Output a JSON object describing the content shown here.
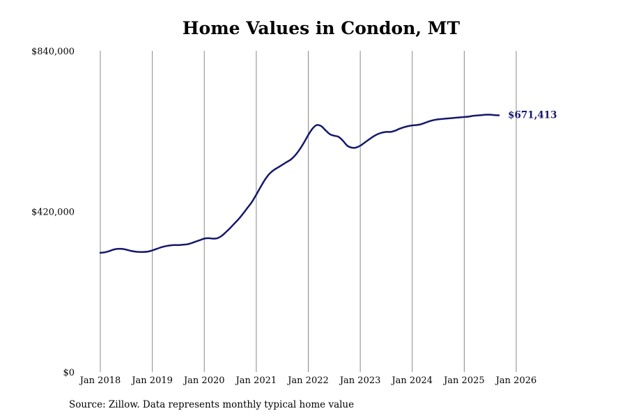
{
  "chart_data": {
    "type": "line",
    "title": "Home Values in Condon, MT",
    "source_note": "Source: Zillow. Data represents monthly typical home value",
    "xlabel": "",
    "ylabel": "",
    "ylim": [
      0,
      840000
    ],
    "y_ticks": [
      0,
      420000,
      840000
    ],
    "y_tick_labels": [
      "$0",
      "$420,000",
      "$840,000"
    ],
    "x_ticks": [
      "2018-01",
      "2019-01",
      "2020-01",
      "2021-01",
      "2022-01",
      "2023-01",
      "2024-01",
      "2025-01",
      "2026-01"
    ],
    "x_tick_labels": [
      "Jan 2018",
      "Jan 2019",
      "Jan 2020",
      "Jan 2021",
      "Jan 2022",
      "Jan 2023",
      "Jan 2024",
      "Jan 2025",
      "Jan 2026"
    ],
    "grid": {
      "vertical": true,
      "horizontal": false
    },
    "end_label": "$671,413",
    "series": [
      {
        "color": "#15186b",
        "points": [
          [
            "2018-01",
            312000
          ],
          [
            "2018-02",
            313000
          ],
          [
            "2018-03",
            316000
          ],
          [
            "2018-04",
            320000
          ],
          [
            "2018-05",
            322000
          ],
          [
            "2018-06",
            322000
          ],
          [
            "2018-07",
            320000
          ],
          [
            "2018-08",
            317000
          ],
          [
            "2018-09",
            315000
          ],
          [
            "2018-10",
            314000
          ],
          [
            "2018-11",
            314000
          ],
          [
            "2018-12",
            315000
          ],
          [
            "2019-01",
            318000
          ],
          [
            "2019-02",
            322000
          ],
          [
            "2019-03",
            326000
          ],
          [
            "2019-04",
            329000
          ],
          [
            "2019-05",
            331000
          ],
          [
            "2019-06",
            332000
          ],
          [
            "2019-07",
            332000
          ],
          [
            "2019-08",
            333000
          ],
          [
            "2019-09",
            334000
          ],
          [
            "2019-10",
            337000
          ],
          [
            "2019-11",
            341000
          ],
          [
            "2019-12",
            345000
          ],
          [
            "2020-01",
            349000
          ],
          [
            "2020-02",
            350000
          ],
          [
            "2020-03",
            349000
          ],
          [
            "2020-04",
            350000
          ],
          [
            "2020-05",
            356000
          ],
          [
            "2020-06",
            366000
          ],
          [
            "2020-07",
            377000
          ],
          [
            "2020-08",
            389000
          ],
          [
            "2020-09",
            401000
          ],
          [
            "2020-10",
            415000
          ],
          [
            "2020-11",
            430000
          ],
          [
            "2020-12",
            445000
          ],
          [
            "2021-01",
            464000
          ],
          [
            "2021-02",
            484000
          ],
          [
            "2021-03",
            503000
          ],
          [
            "2021-04",
            518000
          ],
          [
            "2021-05",
            528000
          ],
          [
            "2021-06",
            535000
          ],
          [
            "2021-07",
            542000
          ],
          [
            "2021-08",
            549000
          ],
          [
            "2021-09",
            556000
          ],
          [
            "2021-10",
            567000
          ],
          [
            "2021-11",
            582000
          ],
          [
            "2021-12",
            600000
          ],
          [
            "2022-01",
            620000
          ],
          [
            "2022-02",
            637000
          ],
          [
            "2022-03",
            646000
          ],
          [
            "2022-04",
            643000
          ],
          [
            "2022-05",
            632000
          ],
          [
            "2022-06",
            622000
          ],
          [
            "2022-07",
            618000
          ],
          [
            "2022-08",
            615000
          ],
          [
            "2022-09",
            605000
          ],
          [
            "2022-10",
            592000
          ],
          [
            "2022-11",
            587000
          ],
          [
            "2022-12",
            587000
          ],
          [
            "2023-01",
            592000
          ],
          [
            "2023-02",
            600000
          ],
          [
            "2023-03",
            608000
          ],
          [
            "2023-04",
            616000
          ],
          [
            "2023-05",
            622000
          ],
          [
            "2023-06",
            626000
          ],
          [
            "2023-07",
            628000
          ],
          [
            "2023-08",
            628000
          ],
          [
            "2023-09",
            631000
          ],
          [
            "2023-10",
            636000
          ],
          [
            "2023-11",
            640000
          ],
          [
            "2023-12",
            643000
          ],
          [
            "2024-01",
            645000
          ],
          [
            "2024-02",
            646000
          ],
          [
            "2024-03",
            648000
          ],
          [
            "2024-04",
            652000
          ],
          [
            "2024-05",
            656000
          ],
          [
            "2024-06",
            659000
          ],
          [
            "2024-07",
            661000
          ],
          [
            "2024-08",
            662000
          ],
          [
            "2024-09",
            663000
          ],
          [
            "2024-10",
            664000
          ],
          [
            "2024-11",
            665000
          ],
          [
            "2024-12",
            666000
          ],
          [
            "2025-01",
            667000
          ],
          [
            "2025-02",
            668000
          ],
          [
            "2025-03",
            670000
          ],
          [
            "2025-04",
            671000
          ],
          [
            "2025-05",
            672000
          ],
          [
            "2025-06",
            673000
          ],
          [
            "2025-07",
            673000
          ],
          [
            "2025-08",
            672000
          ],
          [
            "2025-09",
            671413
          ]
        ]
      }
    ]
  }
}
